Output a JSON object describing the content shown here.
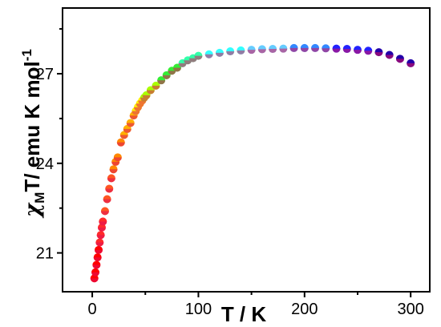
{
  "chart_data": {
    "type": "scatter",
    "xlabel": "T / K",
    "ylabel_parts": {
      "chi": "χ",
      "sub": "M",
      "rest": "T/ emu K mol",
      "sup": "-1"
    },
    "xlim": [
      -28,
      318
    ],
    "ylim": [
      19.7,
      29.2
    ],
    "x_ticks": [
      0,
      100,
      200,
      300
    ],
    "x_tick_labels": [
      "0",
      "100",
      "200",
      "300"
    ],
    "y_ticks": [
      21,
      24,
      27
    ],
    "y_tick_labels": [
      "21",
      "24",
      "27"
    ],
    "grid": false,
    "marker_colors": [
      "#ff0000",
      "#ff2a2a",
      "#ff5522",
      "#ff8800",
      "#ffb000",
      "#ffee00",
      "#aaff00",
      "#33ee33",
      "#33ffaa",
      "#33ffff",
      "#66ccff",
      "#3388ff",
      "#2222ff",
      "#2200aa"
    ],
    "points": [
      {
        "x": 2,
        "y": 20.15
      },
      {
        "x": 3,
        "y": 20.35
      },
      {
        "x": 4,
        "y": 20.6
      },
      {
        "x": 5,
        "y": 20.85
      },
      {
        "x": 6,
        "y": 21.1
      },
      {
        "x": 7,
        "y": 21.35
      },
      {
        "x": 8,
        "y": 21.6
      },
      {
        "x": 9,
        "y": 21.85
      },
      {
        "x": 10,
        "y": 22.05
      },
      {
        "x": 12,
        "y": 22.4
      },
      {
        "x": 14,
        "y": 22.8
      },
      {
        "x": 16,
        "y": 23.15
      },
      {
        "x": 18,
        "y": 23.5
      },
      {
        "x": 20,
        "y": 23.8
      },
      {
        "x": 22,
        "y": 24.05
      },
      {
        "x": 24,
        "y": 24.2
      },
      {
        "x": 27,
        "y": 24.7
      },
      {
        "x": 30,
        "y": 24.95
      },
      {
        "x": 33,
        "y": 25.15
      },
      {
        "x": 36,
        "y": 25.35
      },
      {
        "x": 39,
        "y": 25.6
      },
      {
        "x": 41,
        "y": 25.75
      },
      {
        "x": 43,
        "y": 25.88
      },
      {
        "x": 45,
        "y": 26.0
      },
      {
        "x": 47,
        "y": 26.1
      },
      {
        "x": 49,
        "y": 26.2
      },
      {
        "x": 51,
        "y": 26.28
      },
      {
        "x": 55,
        "y": 26.45
      },
      {
        "x": 60,
        "y": 26.6
      },
      {
        "x": 65,
        "y": 26.78
      },
      {
        "x": 70,
        "y": 26.95
      },
      {
        "x": 75,
        "y": 27.1
      },
      {
        "x": 80,
        "y": 27.2
      },
      {
        "x": 85,
        "y": 27.35
      },
      {
        "x": 90,
        "y": 27.45
      },
      {
        "x": 95,
        "y": 27.52
      },
      {
        "x": 100,
        "y": 27.6
      },
      {
        "x": 110,
        "y": 27.65
      },
      {
        "x": 120,
        "y": 27.7
      },
      {
        "x": 130,
        "y": 27.75
      },
      {
        "x": 140,
        "y": 27.78
      },
      {
        "x": 150,
        "y": 27.8
      },
      {
        "x": 160,
        "y": 27.82
      },
      {
        "x": 170,
        "y": 27.83
      },
      {
        "x": 180,
        "y": 27.84
      },
      {
        "x": 190,
        "y": 27.86
      },
      {
        "x": 200,
        "y": 27.86
      },
      {
        "x": 210,
        "y": 27.86
      },
      {
        "x": 220,
        "y": 27.85
      },
      {
        "x": 230,
        "y": 27.84
      },
      {
        "x": 240,
        "y": 27.83
      },
      {
        "x": 250,
        "y": 27.8
      },
      {
        "x": 260,
        "y": 27.77
      },
      {
        "x": 270,
        "y": 27.72
      },
      {
        "x": 280,
        "y": 27.63
      },
      {
        "x": 290,
        "y": 27.5
      },
      {
        "x": 300,
        "y": 27.35
      }
    ]
  }
}
